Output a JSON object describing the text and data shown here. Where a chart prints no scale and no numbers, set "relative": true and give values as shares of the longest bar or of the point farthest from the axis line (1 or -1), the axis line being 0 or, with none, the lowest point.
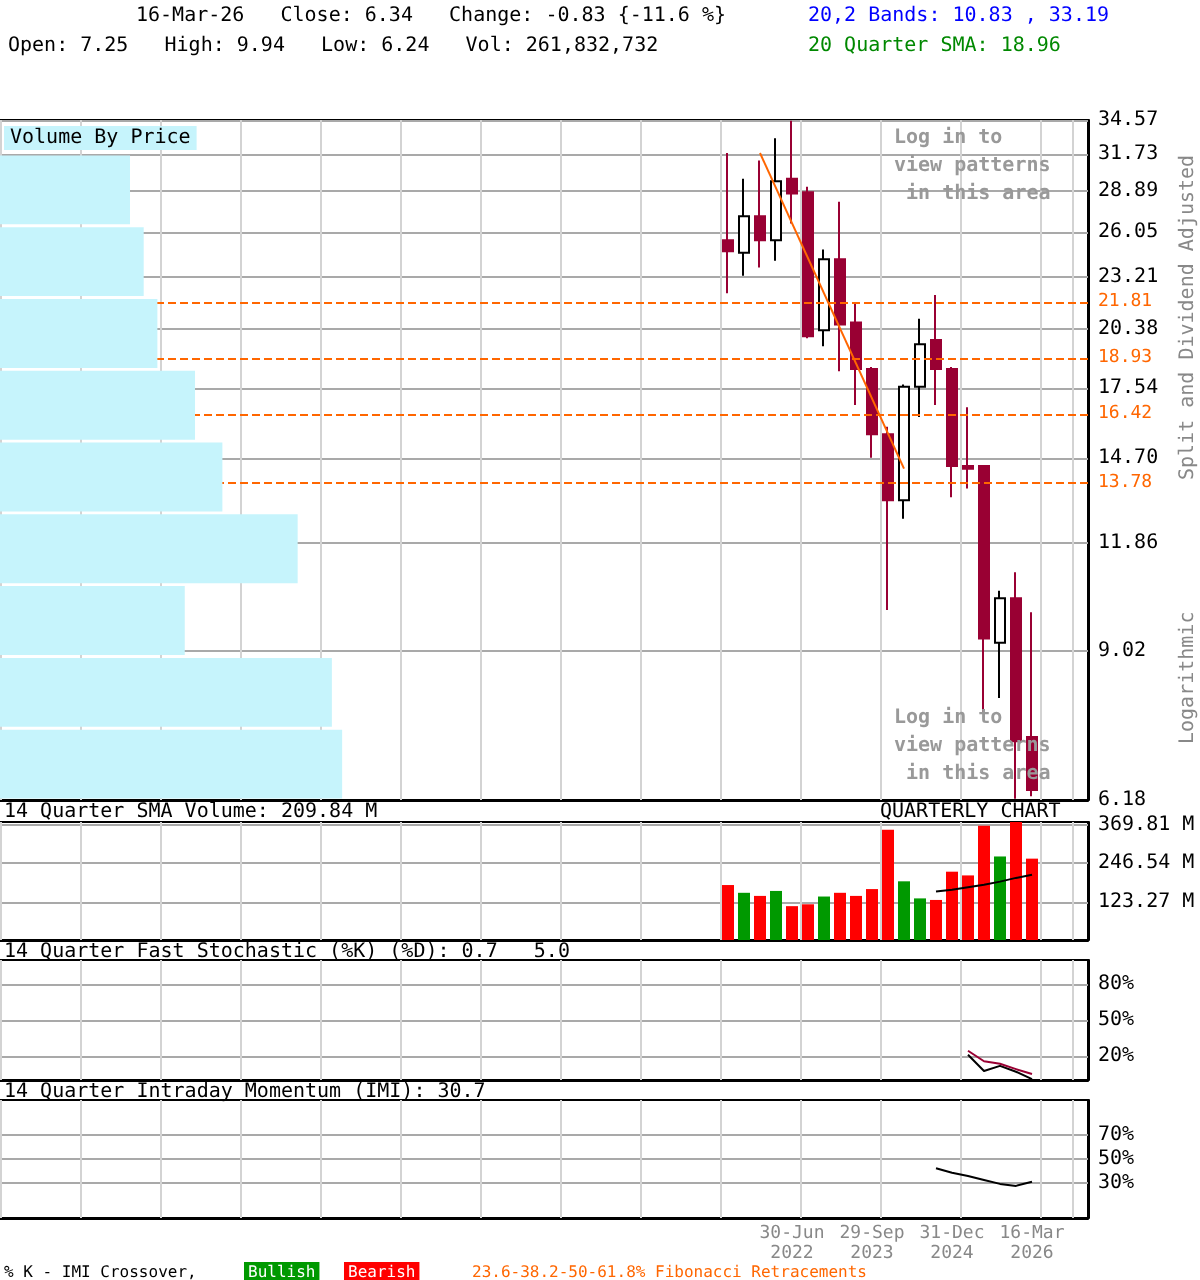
{
  "chart_data": [
    {
      "type": "candlestick",
      "title": "16-Mar-26   Close: 6.34   Change: -0.83 {-11.6 %}",
      "subtitle": "Open: 7.25   High: 9.94   Low: 6.24   Vol: 261,832,732",
      "ylabel": "Split and Dividend Adjusted",
      "annotations": [
        "20,2 Bands: 10.83 , 33.19",
        "20 Quarter SMA: 18.96",
        "Log in to view patterns in this area",
        "Log in to view patterns in this area",
        "Logarithmic"
      ],
      "categories": [
        null,
        null,
        null,
        null,
        null,
        null,
        null,
        null,
        null,
        null,
        null,
        null,
        null,
        null,
        null,
        null,
        null,
        null,
        null,
        null,
        null,
        null,
        null,
        null,
        null,
        null,
        null,
        null,
        null,
        null,
        null,
        null,
        null,
        null,
        null,
        null,
        null,
        null,
        null,
        null,
        null,
        null,
        null,
        null,
        null,
        null,
        null,
        null,
        null,
        null,
        null,
        null,
        null,
        null,
        null,
        null,
        null,
        null,
        null,
        null,
        null,
        null,
        null,
        null,
        null,
        null,
        null,
        null
      ],
      "ohlc": [
        null,
        null,
        null,
        null,
        null,
        null,
        null,
        null,
        null,
        null,
        null,
        null,
        null,
        null,
        null,
        null,
        null,
        null,
        null,
        null,
        null,
        null,
        null,
        null,
        null,
        null,
        null,
        null,
        null,
        null,
        null,
        null,
        null,
        null,
        null,
        null,
        null,
        null,
        null,
        null,
        null,
        null,
        null,
        null,
        null,
        [
          25.5,
          31.8,
          22.3,
          24.8
        ],
        [
          24.7,
          29.8,
          23.3,
          27.1
        ],
        [
          27.1,
          31.2,
          23.8,
          25.5
        ],
        [
          25.5,
          33.0,
          24.2,
          29.6
        ],
        [
          29.8,
          34.5,
          26.6,
          28.7
        ],
        [
          28.8,
          29.2,
          19.9,
          20.0
        ],
        [
          20.3,
          24.9,
          19.5,
          24.3
        ],
        [
          24.3,
          28.1,
          18.3,
          20.6
        ],
        [
          20.7,
          21.8,
          16.8,
          18.4
        ],
        [
          18.4,
          18.5,
          14.7,
          15.6
        ],
        [
          15.6,
          15.9,
          10.0,
          13.2
        ],
        [
          13.2,
          17.7,
          12.6,
          17.6
        ],
        [
          17.6,
          20.9,
          16.3,
          19.6
        ],
        [
          19.8,
          22.2,
          16.8,
          18.4
        ],
        [
          18.4,
          18.5,
          13.3,
          14.4
        ],
        [
          14.4,
          16.7,
          13.6,
          14.3
        ],
        [
          14.4,
          14.4,
          7.7,
          9.3
        ],
        [
          9.2,
          10.5,
          8.0,
          10.3
        ],
        [
          10.3,
          11.0,
          6.2,
          7.17
        ],
        [
          7.25,
          9.94,
          6.24,
          6.34
        ],
        null,
        null,
        null
      ],
      "colors": [
        null,
        null,
        null,
        null,
        null,
        null,
        null,
        null,
        null,
        null,
        null,
        null,
        null,
        null,
        null,
        null,
        null,
        null,
        null,
        null,
        null,
        null,
        null,
        null,
        null,
        null,
        null,
        null,
        null,
        null,
        null,
        null,
        null,
        null,
        null,
        null,
        null,
        null,
        null,
        null,
        null,
        null,
        null,
        null,
        null,
        "#990033",
        "#ffffff",
        "#990033",
        "#ffffff",
        "#990033",
        "#990033",
        "#ffffff",
        "#990033",
        "#990033",
        "#990033",
        "#990033",
        "#ffffff",
        "#ffffff",
        "#990033",
        "#990033",
        "#990033",
        "#990033",
        "#ffffff",
        "#990033",
        "#990033",
        null,
        null,
        null
      ],
      "series": [
        {
          "type": "line",
          "color": "#ff6600",
          "values": [
            null,
            null,
            null,
            null,
            null,
            null,
            null,
            null,
            null,
            null,
            null,
            null,
            null,
            null,
            null,
            null,
            null,
            null,
            null,
            null,
            null,
            null,
            null,
            null,
            null,
            null,
            null,
            null,
            null,
            null,
            null,
            null,
            null,
            null,
            null,
            null,
            null,
            null,
            null,
            null,
            null,
            null,
            null,
            null,
            null,
            null,
            null,
            31.8,
            null,
            null,
            null,
            null,
            null,
            null,
            null,
            null,
            14.3,
            null,
            null,
            null,
            null,
            null,
            null,
            null,
            null,
            null,
            null,
            null
          ]
        }
      ],
      "ylim": [
        6.18,
        34.57
      ],
      "log": true,
      "grid": true,
      "tick_labels": "y",
      "yticks": [
        6.18,
        9.02,
        11.86,
        {
          "value": 14.7,
          "label": "14.70"
        },
        17.54,
        20.38,
        23.21,
        26.05,
        28.89,
        31.73,
        34.57
      ],
      "ref_lines": [
        {
          "axis": "y",
          "value": 21.81,
          "label": "21.81",
          "color": "#ff6600",
          "line_style": "dashed"
        },
        {
          "axis": "y",
          "value": 18.93,
          "label": "18.93",
          "color": "#ff6600",
          "line_style": "dashed"
        },
        {
          "axis": "y",
          "value": 16.42,
          "label": "16.42",
          "color": "#ff6600",
          "line_style": "dashed"
        },
        {
          "axis": "y",
          "value": 13.78,
          "label": "13.78",
          "color": "#ff6600",
          "line_style": "dashed"
        }
      ]
    },
    {
      "type": "bar",
      "title": "Volume By Price",
      "orientation": "horizontal",
      "relative": true,
      "categories": [
        null,
        null,
        null,
        null,
        null,
        null,
        null,
        null,
        null
      ],
      "values": [
        0.38,
        0.42,
        0.46,
        0.57,
        0.65,
        0.87,
        0.54,
        0.97,
        1
      ],
      "color": "#c6f4fc"
    },
    {
      "type": "bar",
      "title": "14 Quarter SMA Volume: 209.84 M",
      "annotations": [
        "QUARTERLY CHART"
      ],
      "categories": [
        null,
        null,
        null,
        null,
        null,
        null,
        null,
        null,
        null,
        null,
        null,
        null,
        null,
        null,
        null,
        null,
        null,
        null,
        null,
        null,
        null,
        null,
        null,
        null,
        null,
        null,
        null,
        null,
        null,
        null,
        null,
        null,
        null,
        null,
        null,
        null,
        null,
        null,
        null,
        null,
        null,
        null,
        null,
        null,
        null,
        null,
        null,
        null,
        null,
        null,
        null,
        null,
        null,
        null,
        null,
        null,
        null,
        null,
        null,
        null,
        null,
        null,
        null,
        null,
        null,
        null,
        null,
        null
      ],
      "series": [
        {
          "type": "bar",
          "values": [
            null,
            null,
            null,
            null,
            null,
            null,
            null,
            null,
            null,
            null,
            null,
            null,
            null,
            null,
            null,
            null,
            null,
            null,
            null,
            null,
            null,
            null,
            null,
            null,
            null,
            null,
            null,
            null,
            null,
            null,
            null,
            null,
            null,
            null,
            null,
            null,
            null,
            null,
            null,
            null,
            null,
            null,
            null,
            null,
            null,
            177,
            152,
            142,
            158,
            109,
            115,
            140,
            152,
            142,
            164,
            355,
            189,
            134,
            129,
            220,
            208,
            368,
            269,
            380,
            262,
            null,
            null,
            null
          ],
          "colors": [
            null,
            null,
            null,
            null,
            null,
            null,
            null,
            null,
            null,
            null,
            null,
            null,
            null,
            null,
            null,
            null,
            null,
            null,
            null,
            null,
            null,
            null,
            null,
            null,
            null,
            null,
            null,
            null,
            null,
            null,
            null,
            null,
            null,
            null,
            null,
            null,
            null,
            null,
            null,
            null,
            null,
            null,
            null,
            null,
            null,
            "#ff0000",
            "#009900",
            "#ff0000",
            "#009900",
            "#ff0000",
            "#ff0000",
            "#009900",
            "#ff0000",
            "#ff0000",
            "#ff0000",
            "#ff0000",
            "#009900",
            "#009900",
            "#ff0000",
            "#ff0000",
            "#ff0000",
            "#ff0000",
            "#009900",
            "#ff0000",
            "#ff0000",
            null,
            null,
            null
          ]
        },
        {
          "type": "line",
          "color": "#000000",
          "values": [
            null,
            null,
            null,
            null,
            null,
            null,
            null,
            null,
            null,
            null,
            null,
            null,
            null,
            null,
            null,
            null,
            null,
            null,
            null,
            null,
            null,
            null,
            null,
            null,
            null,
            null,
            null,
            null,
            null,
            null,
            null,
            null,
            null,
            null,
            null,
            null,
            null,
            null,
            null,
            null,
            null,
            null,
            null,
            null,
            null,
            null,
            null,
            null,
            null,
            null,
            null,
            null,
            null,
            null,
            null,
            null,
            null,
            null,
            156,
            162,
            170,
            178,
            188,
            200,
            210,
            null,
            null,
            null
          ]
        }
      ],
      "ylim": [
        0,
        380
      ],
      "yticks": [
        {
          "value": 123.27,
          "label": "123.27 M"
        },
        {
          "value": 246.54,
          "label": "246.54 M"
        },
        {
          "value": 369.81,
          "label": "369.81 M"
        }
      ],
      "grid": true,
      "tick_labels": "y"
    },
    {
      "type": "line",
      "title": "14 Quarter Fast Stochastic (%K) (%D): 0.7   5.0",
      "categories": [
        null,
        null,
        null,
        null,
        null,
        null,
        null,
        null,
        null,
        null,
        null,
        null,
        null,
        null,
        null,
        null,
        null,
        null,
        null,
        null,
        null,
        null,
        null,
        null,
        null,
        null,
        null,
        null,
        null,
        null,
        null,
        null,
        null,
        null,
        null,
        null,
        null,
        null,
        null,
        null,
        null,
        null,
        null,
        null,
        null,
        null,
        null,
        null,
        null,
        null,
        null,
        null,
        null,
        null,
        null,
        null,
        null,
        null,
        null,
        null,
        null,
        null,
        null,
        null,
        null,
        null,
        null,
        null
      ],
      "series": [
        {
          "color": "#000000",
          "values": [
            null,
            null,
            null,
            null,
            null,
            null,
            null,
            null,
            null,
            null,
            null,
            null,
            null,
            null,
            null,
            null,
            null,
            null,
            null,
            null,
            null,
            null,
            null,
            null,
            null,
            null,
            null,
            null,
            null,
            null,
            null,
            null,
            null,
            null,
            null,
            null,
            null,
            null,
            null,
            null,
            null,
            null,
            null,
            null,
            null,
            null,
            null,
            null,
            null,
            null,
            null,
            null,
            null,
            null,
            null,
            null,
            null,
            null,
            null,
            null,
            21.1,
            7.5,
            11.8,
            6.9,
            0.7,
            null,
            null,
            null
          ]
        },
        {
          "color": "#990033",
          "values": [
            null,
            null,
            null,
            null,
            null,
            null,
            null,
            null,
            null,
            null,
            null,
            null,
            null,
            null,
            null,
            null,
            null,
            null,
            null,
            null,
            null,
            null,
            null,
            null,
            null,
            null,
            null,
            null,
            null,
            null,
            null,
            null,
            null,
            null,
            null,
            null,
            null,
            null,
            null,
            null,
            null,
            null,
            null,
            null,
            null,
            null,
            null,
            null,
            null,
            null,
            null,
            null,
            null,
            null,
            null,
            null,
            null,
            null,
            null,
            null,
            24.4,
            15.6,
            13.5,
            9.1,
            5.0,
            null,
            null,
            null
          ]
        }
      ],
      "ylim": [
        0,
        100
      ],
      "yticks": [
        {
          "value": 20,
          "label": "20%"
        },
        {
          "value": 50,
          "label": "50%"
        },
        {
          "value": 80,
          "label": "80%"
        }
      ],
      "grid": true,
      "tick_labels": "y"
    },
    {
      "type": "line",
      "title": "14 Quarter Intraday Momentum (IMI): 30.7",
      "annotations": [
        "% K - IMI Crossover,",
        "Bullish",
        "Bearish",
        "23.6-38.2-50-61.8% Fibonacci Retracements"
      ],
      "categories": [
        null,
        null,
        null,
        null,
        null,
        null,
        null,
        null,
        null,
        null,
        null,
        null,
        null,
        null,
        null,
        null,
        null,
        null,
        null,
        null,
        null,
        null,
        null,
        null,
        null,
        null,
        null,
        null,
        null,
        null,
        null,
        null,
        null,
        null,
        null,
        null,
        null,
        null,
        null,
        null,
        null,
        null,
        null,
        null,
        null,
        null,
        null,
        null,
        null,
        "30-Jun 2022",
        null,
        null,
        null,
        null,
        "29-Sep 2023",
        null,
        null,
        null,
        null,
        "31-Dec 2024",
        null,
        null,
        null,
        null,
        "16-Mar 2026",
        null,
        null,
        null
      ],
      "series": [
        {
          "color": "#000000",
          "values": [
            null,
            null,
            null,
            null,
            null,
            null,
            null,
            null,
            null,
            null,
            null,
            null,
            null,
            null,
            null,
            null,
            null,
            null,
            null,
            null,
            null,
            null,
            null,
            null,
            null,
            null,
            null,
            null,
            null,
            null,
            null,
            null,
            null,
            null,
            null,
            null,
            null,
            null,
            null,
            null,
            null,
            null,
            null,
            null,
            null,
            null,
            null,
            null,
            null,
            null,
            null,
            null,
            null,
            null,
            null,
            null,
            null,
            null,
            42.2,
            38.3,
            35.6,
            32.2,
            28.9,
            27.2,
            30.7,
            null,
            null,
            null
          ]
        }
      ],
      "ylim": [
        0,
        100
      ],
      "yticks": [
        {
          "value": 30,
          "label": "30%"
        },
        {
          "value": 50,
          "label": "50%"
        },
        {
          "value": 70,
          "label": "70%"
        }
      ],
      "grid": true
    }
  ]
}
